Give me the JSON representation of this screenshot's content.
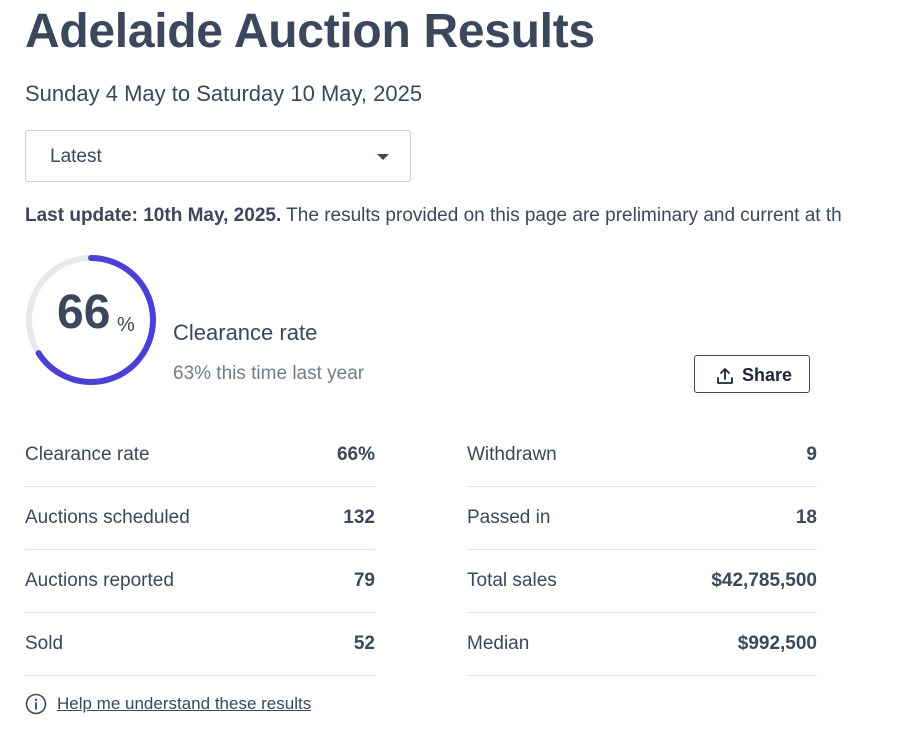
{
  "page": {
    "title": "Adelaide Auction Results",
    "date_range": "Sunday 4 May to Saturday 10 May, 2025"
  },
  "period_select": {
    "value": "Latest"
  },
  "update": {
    "bold": "Last update: 10th May, 2025.",
    "text": " The results provided on this page are preliminary and current at th"
  },
  "clearance": {
    "value": "66",
    "unit": "%",
    "fraction": 0.66,
    "label": "Clearance rate",
    "last_year": "63% this time last year"
  },
  "share": {
    "label": "Share",
    "icon": "share-upload-icon"
  },
  "stats_left": [
    {
      "label": "Clearance rate",
      "value": "66%"
    },
    {
      "label": "Auctions scheduled",
      "value": "132"
    },
    {
      "label": "Auctions reported",
      "value": "79"
    },
    {
      "label": "Sold",
      "value": "52"
    }
  ],
  "stats_right": [
    {
      "label": "Withdrawn",
      "value": "9"
    },
    {
      "label": "Passed in",
      "value": "18"
    },
    {
      "label": "Total sales",
      "value": "$42,785,500"
    },
    {
      "label": "Median",
      "value": "$992,500"
    }
  ],
  "help": {
    "label": "Help me understand these results",
    "icon": "info-icon"
  },
  "colors": {
    "accent": "#4b3fd6",
    "gauge_track": "#e6e8ec",
    "text": "#3c475b",
    "muted": "#737b89"
  }
}
